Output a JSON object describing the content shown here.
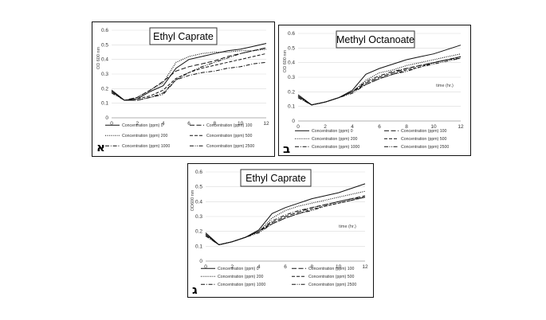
{
  "chart_data": [
    {
      "type": "line",
      "title": "Ethyl Caprate",
      "panel_letter": "א",
      "xlabel": "",
      "ylabel": "OD 600 nm",
      "xlim": [
        0,
        12
      ],
      "ylim": [
        0,
        0.6
      ],
      "xticks": [
        "0",
        "2",
        "4",
        "6",
        "8",
        "10",
        "12"
      ],
      "yticks": [
        "0",
        "0.1",
        "0.2",
        "0.3",
        "0.4",
        "0.5",
        "0.6"
      ],
      "series": [
        {
          "name": "Concentration (ppm) 0",
          "style": "solid",
          "points": [
            [
              0,
              0.19
            ],
            [
              1,
              0.12
            ],
            [
              2,
              0.13
            ],
            [
              3,
              0.18
            ],
            [
              4,
              0.22
            ],
            [
              5,
              0.34
            ],
            [
              6,
              0.4
            ],
            [
              7,
              0.42
            ],
            [
              8,
              0.44
            ],
            [
              9,
              0.46
            ],
            [
              10,
              0.47
            ],
            [
              11,
              0.49
            ],
            [
              12,
              0.51
            ]
          ]
        },
        {
          "name": "Concentration (ppm) 100",
          "style": "longdash",
          "points": [
            [
              0,
              0.18
            ],
            [
              1,
              0.12
            ],
            [
              2,
              0.14
            ],
            [
              3,
              0.19
            ],
            [
              4,
              0.25
            ],
            [
              5,
              0.32
            ],
            [
              6,
              0.35
            ],
            [
              7,
              0.37
            ],
            [
              8,
              0.39
            ],
            [
              9,
              0.42
            ],
            [
              10,
              0.44
            ],
            [
              11,
              0.46
            ],
            [
              12,
              0.48
            ]
          ]
        },
        {
          "name": "Concentration (ppm) 200",
          "style": "dotted",
          "points": [
            [
              0,
              0.18
            ],
            [
              1,
              0.12
            ],
            [
              2,
              0.14
            ],
            [
              3,
              0.19
            ],
            [
              4,
              0.24
            ],
            [
              5,
              0.38
            ],
            [
              6,
              0.42
            ],
            [
              7,
              0.44
            ],
            [
              8,
              0.45
            ],
            [
              9,
              0.45
            ],
            [
              10,
              0.46
            ],
            [
              11,
              0.46
            ],
            [
              12,
              0.47
            ]
          ]
        },
        {
          "name": "Concentration (ppm) 500",
          "style": "dash",
          "points": [
            [
              0,
              0.18
            ],
            [
              1,
              0.12
            ],
            [
              2,
              0.13
            ],
            [
              3,
              0.15
            ],
            [
              4,
              0.19
            ],
            [
              5,
              0.27
            ],
            [
              6,
              0.31
            ],
            [
              7,
              0.34
            ],
            [
              8,
              0.36
            ],
            [
              9,
              0.38
            ],
            [
              10,
              0.4
            ],
            [
              11,
              0.42
            ],
            [
              12,
              0.44
            ]
          ]
        },
        {
          "name": "Concentration (ppm) 1000",
          "style": "dashdot",
          "points": [
            [
              0,
              0.18
            ],
            [
              1,
              0.12
            ],
            [
              2,
              0.12
            ],
            [
              3,
              0.14
            ],
            [
              4,
              0.17
            ],
            [
              5,
              0.26
            ],
            [
              6,
              0.29
            ],
            [
              7,
              0.31
            ],
            [
              8,
              0.32
            ],
            [
              9,
              0.34
            ],
            [
              10,
              0.35
            ],
            [
              11,
              0.37
            ],
            [
              12,
              0.38
            ]
          ]
        },
        {
          "name": "Concentration (ppm) 2500",
          "style": "dashdotdot",
          "points": [
            [
              0,
              0.17
            ],
            [
              1,
              0.12
            ],
            [
              2,
              0.12
            ],
            [
              3,
              0.14
            ],
            [
              4,
              0.16
            ],
            [
              5,
              0.26
            ],
            [
              6,
              0.31
            ],
            [
              7,
              0.35
            ],
            [
              8,
              0.38
            ],
            [
              9,
              0.41
            ],
            [
              10,
              0.44
            ],
            [
              11,
              0.46
            ],
            [
              12,
              0.48
            ]
          ]
        }
      ]
    },
    {
      "type": "line",
      "title": "Methyl Octanoate",
      "panel_letter": "ב",
      "xlabel": "time (hr.)",
      "ylabel": "OD 600 nm",
      "xlim": [
        0,
        12
      ],
      "ylim": [
        0,
        0.6
      ],
      "xticks": [
        "0",
        "2",
        "4",
        "6",
        "8",
        "10",
        "12"
      ],
      "yticks": [
        "0",
        "0.1",
        "0.2",
        "0.3",
        "0.4",
        "0.5",
        "0.6"
      ],
      "series": [
        {
          "name": "Concentration (ppm) 0",
          "style": "solid",
          "points": [
            [
              0,
              0.18
            ],
            [
              1,
              0.11
            ],
            [
              2,
              0.13
            ],
            [
              3,
              0.16
            ],
            [
              4,
              0.21
            ],
            [
              5,
              0.32
            ],
            [
              6,
              0.36
            ],
            [
              7,
              0.39
            ],
            [
              8,
              0.42
            ],
            [
              9,
              0.44
            ],
            [
              10,
              0.46
            ],
            [
              11,
              0.49
            ],
            [
              12,
              0.52
            ]
          ]
        },
        {
          "name": "Concentration (ppm) 100",
          "style": "longdash",
          "points": [
            [
              0,
              0.17
            ],
            [
              1,
              0.11
            ],
            [
              2,
              0.13
            ],
            [
              3,
              0.16
            ],
            [
              4,
              0.2
            ],
            [
              5,
              0.26
            ],
            [
              6,
              0.3
            ],
            [
              7,
              0.33
            ],
            [
              8,
              0.36
            ],
            [
              9,
              0.38
            ],
            [
              10,
              0.4
            ],
            [
              11,
              0.42
            ],
            [
              12,
              0.44
            ]
          ]
        },
        {
          "name": "Concentration (ppm) 200",
          "style": "dotted",
          "points": [
            [
              0,
              0.17
            ],
            [
              1,
              0.11
            ],
            [
              2,
              0.13
            ],
            [
              3,
              0.16
            ],
            [
              4,
              0.2
            ],
            [
              5,
              0.28
            ],
            [
              6,
              0.33
            ],
            [
              7,
              0.35
            ],
            [
              8,
              0.38
            ],
            [
              9,
              0.4
            ],
            [
              10,
              0.42
            ],
            [
              11,
              0.44
            ],
            [
              12,
              0.46
            ]
          ]
        },
        {
          "name": "Concentration (ppm) 500",
          "style": "dash",
          "points": [
            [
              0,
              0.17
            ],
            [
              1,
              0.11
            ],
            [
              2,
              0.13
            ],
            [
              3,
              0.16
            ],
            [
              4,
              0.2
            ],
            [
              5,
              0.25
            ],
            [
              6,
              0.29
            ],
            [
              7,
              0.32
            ],
            [
              8,
              0.35
            ],
            [
              9,
              0.37
            ],
            [
              10,
              0.4
            ],
            [
              11,
              0.42
            ],
            [
              12,
              0.44
            ]
          ]
        },
        {
          "name": "Concentration (ppm) 1000",
          "style": "dashdot",
          "points": [
            [
              0,
              0.16
            ],
            [
              1,
              0.11
            ],
            [
              2,
              0.13
            ],
            [
              3,
              0.16
            ],
            [
              4,
              0.2
            ],
            [
              5,
              0.27
            ],
            [
              6,
              0.31
            ],
            [
              7,
              0.34
            ],
            [
              8,
              0.36
            ],
            [
              9,
              0.38
            ],
            [
              10,
              0.4
            ],
            [
              11,
              0.42
            ],
            [
              12,
              0.43
            ]
          ]
        },
        {
          "name": "Concentration (ppm) 2500",
          "style": "dashdotdot",
          "points": [
            [
              0,
              0.16
            ],
            [
              1,
              0.11
            ],
            [
              2,
              0.13
            ],
            [
              3,
              0.16
            ],
            [
              4,
              0.19
            ],
            [
              5,
              0.25
            ],
            [
              6,
              0.29
            ],
            [
              7,
              0.32
            ],
            [
              8,
              0.34
            ],
            [
              9,
              0.37
            ],
            [
              10,
              0.39
            ],
            [
              11,
              0.41
            ],
            [
              12,
              0.43
            ]
          ]
        }
      ]
    },
    {
      "type": "line",
      "title": "Ethyl Caprate",
      "panel_letter": "ג",
      "xlabel": "time (hr.)",
      "ylabel": "OD600 nm",
      "xlim": [
        0,
        12
      ],
      "ylim": [
        0,
        0.6
      ],
      "xticks": [
        "0",
        "2",
        "4",
        "6",
        "8",
        "10",
        "12"
      ],
      "yticks": [
        "0",
        "0.1",
        "0.2",
        "0.3",
        "0.4",
        "0.5",
        "0.6"
      ],
      "series": [
        {
          "name": "Concentration (ppm) 0",
          "style": "solid",
          "points": [
            [
              0,
              0.19
            ],
            [
              1,
              0.11
            ],
            [
              2,
              0.13
            ],
            [
              3,
              0.16
            ],
            [
              4,
              0.21
            ],
            [
              5,
              0.32
            ],
            [
              6,
              0.36
            ],
            [
              7,
              0.39
            ],
            [
              8,
              0.42
            ],
            [
              9,
              0.44
            ],
            [
              10,
              0.46
            ],
            [
              11,
              0.49
            ],
            [
              12,
              0.52
            ]
          ]
        },
        {
          "name": "Concentration (ppm) 100",
          "style": "longdash",
          "points": [
            [
              0,
              0.18
            ],
            [
              1,
              0.11
            ],
            [
              2,
              0.13
            ],
            [
              3,
              0.16
            ],
            [
              4,
              0.2
            ],
            [
              5,
              0.26
            ],
            [
              6,
              0.3
            ],
            [
              7,
              0.33
            ],
            [
              8,
              0.36
            ],
            [
              9,
              0.38
            ],
            [
              10,
              0.4
            ],
            [
              11,
              0.42
            ],
            [
              12,
              0.44
            ]
          ]
        },
        {
          "name": "Concentration (ppm) 200",
          "style": "dotted",
          "points": [
            [
              0,
              0.18
            ],
            [
              1,
              0.11
            ],
            [
              2,
              0.13
            ],
            [
              3,
              0.16
            ],
            [
              4,
              0.2
            ],
            [
              5,
              0.29
            ],
            [
              6,
              0.34
            ],
            [
              7,
              0.37
            ],
            [
              8,
              0.39
            ],
            [
              9,
              0.41
            ],
            [
              10,
              0.43
            ],
            [
              11,
              0.45
            ],
            [
              12,
              0.47
            ]
          ]
        },
        {
          "name": "Concentration (ppm) 500",
          "style": "dash",
          "points": [
            [
              0,
              0.18
            ],
            [
              1,
              0.11
            ],
            [
              2,
              0.13
            ],
            [
              3,
              0.16
            ],
            [
              4,
              0.2
            ],
            [
              5,
              0.25
            ],
            [
              6,
              0.29
            ],
            [
              7,
              0.32
            ],
            [
              8,
              0.35
            ],
            [
              9,
              0.37
            ],
            [
              10,
              0.39
            ],
            [
              11,
              0.41
            ],
            [
              12,
              0.43
            ]
          ]
        },
        {
          "name": "Concentration (ppm) 1000",
          "style": "dashdot",
          "points": [
            [
              0,
              0.17
            ],
            [
              1,
              0.11
            ],
            [
              2,
              0.13
            ],
            [
              3,
              0.16
            ],
            [
              4,
              0.2
            ],
            [
              5,
              0.27
            ],
            [
              6,
              0.31
            ],
            [
              7,
              0.34
            ],
            [
              8,
              0.36
            ],
            [
              9,
              0.38
            ],
            [
              10,
              0.4
            ],
            [
              11,
              0.42
            ],
            [
              12,
              0.43
            ]
          ]
        },
        {
          "name": "Concentration (ppm) 2500",
          "style": "dashdotdot",
          "points": [
            [
              0,
              0.17
            ],
            [
              1,
              0.11
            ],
            [
              2,
              0.13
            ],
            [
              3,
              0.16
            ],
            [
              4,
              0.19
            ],
            [
              5,
              0.25
            ],
            [
              6,
              0.29
            ],
            [
              7,
              0.32
            ],
            [
              8,
              0.34
            ],
            [
              9,
              0.37
            ],
            [
              10,
              0.39
            ],
            [
              11,
              0.41
            ],
            [
              12,
              0.43
            ]
          ]
        }
      ]
    }
  ]
}
